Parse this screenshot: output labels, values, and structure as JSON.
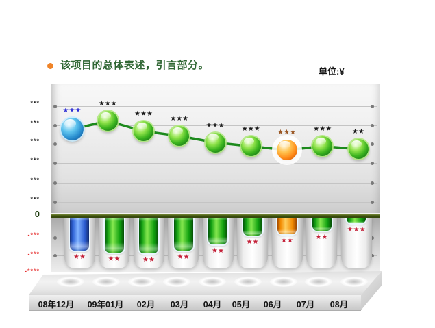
{
  "header": {
    "title": "该项目的总体表述，引言部分。",
    "unit_label": "单位:¥",
    "title_color": "#2F6633",
    "bullet_color": "#F08428"
  },
  "chart_data": {
    "type": "line+bar",
    "title": "",
    "xlabel": "",
    "ylabel": "单位:¥",
    "values_masked": true,
    "categories": [
      "08年12月",
      "09年01月",
      "02月",
      "03月",
      "04月",
      "05月",
      "06月",
      "07月",
      "08月"
    ],
    "y_axis": {
      "positive_tick_labels": [
        "***",
        "***",
        "***",
        "***",
        "***",
        "***"
      ],
      "zero_label": "0",
      "negative_tick_labels": [
        "-***",
        "-***",
        "-****"
      ],
      "positive_color": "#1A1A1A",
      "negative_color": "#E62E2E",
      "ylim_units": [
        -3,
        7
      ]
    },
    "grid": {
      "horizontal": true,
      "positive_lines": 6,
      "negative_lines": 2,
      "legend": "none"
    },
    "line_series": {
      "name": "trend-line",
      "line_color": "#1C8A1C",
      "values_units": [
        4.55,
        5.0,
        4.45,
        4.2,
        3.85,
        3.65,
        3.45,
        3.65,
        3.5
      ],
      "point_labels": [
        "★★★",
        "★★★",
        "★★★",
        "★★★",
        "★★★",
        "★★★",
        "★★★",
        "★★★",
        "★★"
      ],
      "point_label_colors": [
        "#2B2BD4",
        "#1A1A1A",
        "#1A1A1A",
        "#1A1A1A",
        "#1A1A1A",
        "#1A1A1A",
        "#9C5A28",
        "#1A1A1A",
        "#1A1A1A"
      ],
      "point_colors": [
        "blue",
        "green",
        "green",
        "green",
        "green",
        "green",
        "orange",
        "green",
        "green"
      ],
      "highlight_point_index": 6
    },
    "bar_series": {
      "name": "monthly-bars",
      "values_units": [
        -1.9,
        -2.0,
        -2.05,
        -1.9,
        -1.55,
        -1.1,
        -1.0,
        -0.85,
        -0.45
      ],
      "bar_labels": [
        "★★",
        "★★",
        "★★",
        "★★",
        "★★",
        "★★",
        "★★",
        "★★",
        "★★★"
      ],
      "bar_label_color": "#C42038",
      "bar_colors": [
        "blue",
        "green",
        "green",
        "green",
        "green",
        "green",
        "orange",
        "green",
        "green"
      ]
    }
  }
}
